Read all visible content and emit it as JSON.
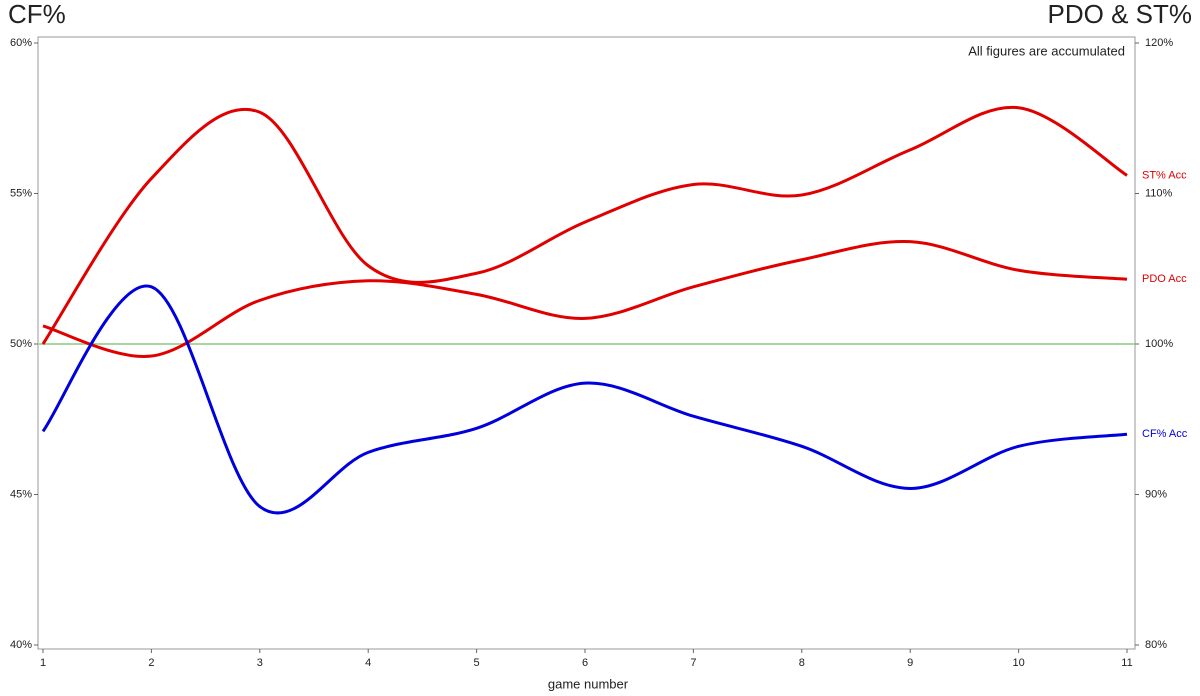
{
  "chart_data": {
    "type": "line",
    "title": "CF%",
    "title_right": "PDO & ST%",
    "annotation": "All figures are accumulated",
    "x_label": "game number",
    "x": [
      1,
      2,
      3,
      4,
      5,
      6,
      7,
      8,
      9,
      10,
      11
    ],
    "xlim": [
      1,
      11
    ],
    "xticks": [
      1,
      2,
      3,
      4,
      5,
      6,
      7,
      8,
      9,
      10,
      11
    ],
    "ylim": [
      40,
      60
    ],
    "yticks": [
      {
        "value": 40,
        "label": "40%"
      },
      {
        "value": 45,
        "label": "45%"
      },
      {
        "value": 50,
        "label": "50%"
      },
      {
        "value": 55,
        "label": "55%"
      },
      {
        "value": 60,
        "label": "60%"
      }
    ],
    "y2lim": [
      80,
      120
    ],
    "y2ticks": [
      {
        "value": 80,
        "label": "80%"
      },
      {
        "value": 90,
        "label": "90%"
      },
      {
        "value": 100,
        "label": "100%"
      },
      {
        "value": 110,
        "label": "110%"
      },
      {
        "value": 120,
        "label": "120%"
      }
    ],
    "reference_line": 50,
    "reference_color": "#a8d8a0",
    "title_color": "#0000dd",
    "title_right_color": "#e00000",
    "series": [
      {
        "name": "ST% Acc",
        "color": "#e00000",
        "axis": "y2",
        "values": [
          100.0,
          111.0,
          115.4,
          105.2,
          104.7,
          108.1,
          110.6,
          109.9,
          112.9,
          115.7,
          111.2
        ]
      },
      {
        "name": "PDO Acc",
        "color": "#e00000",
        "axis": "y2",
        "values": [
          101.2,
          99.2,
          102.9,
          104.2,
          103.3,
          101.7,
          103.8,
          105.6,
          106.8,
          104.9,
          104.3
        ]
      },
      {
        "name": "CF% Acc",
        "color": "#0000dd",
        "values": [
          47.1,
          51.9,
          44.6,
          46.4,
          47.2,
          48.7,
          47.6,
          46.6,
          45.2,
          46.6,
          47.0
        ]
      }
    ]
  }
}
